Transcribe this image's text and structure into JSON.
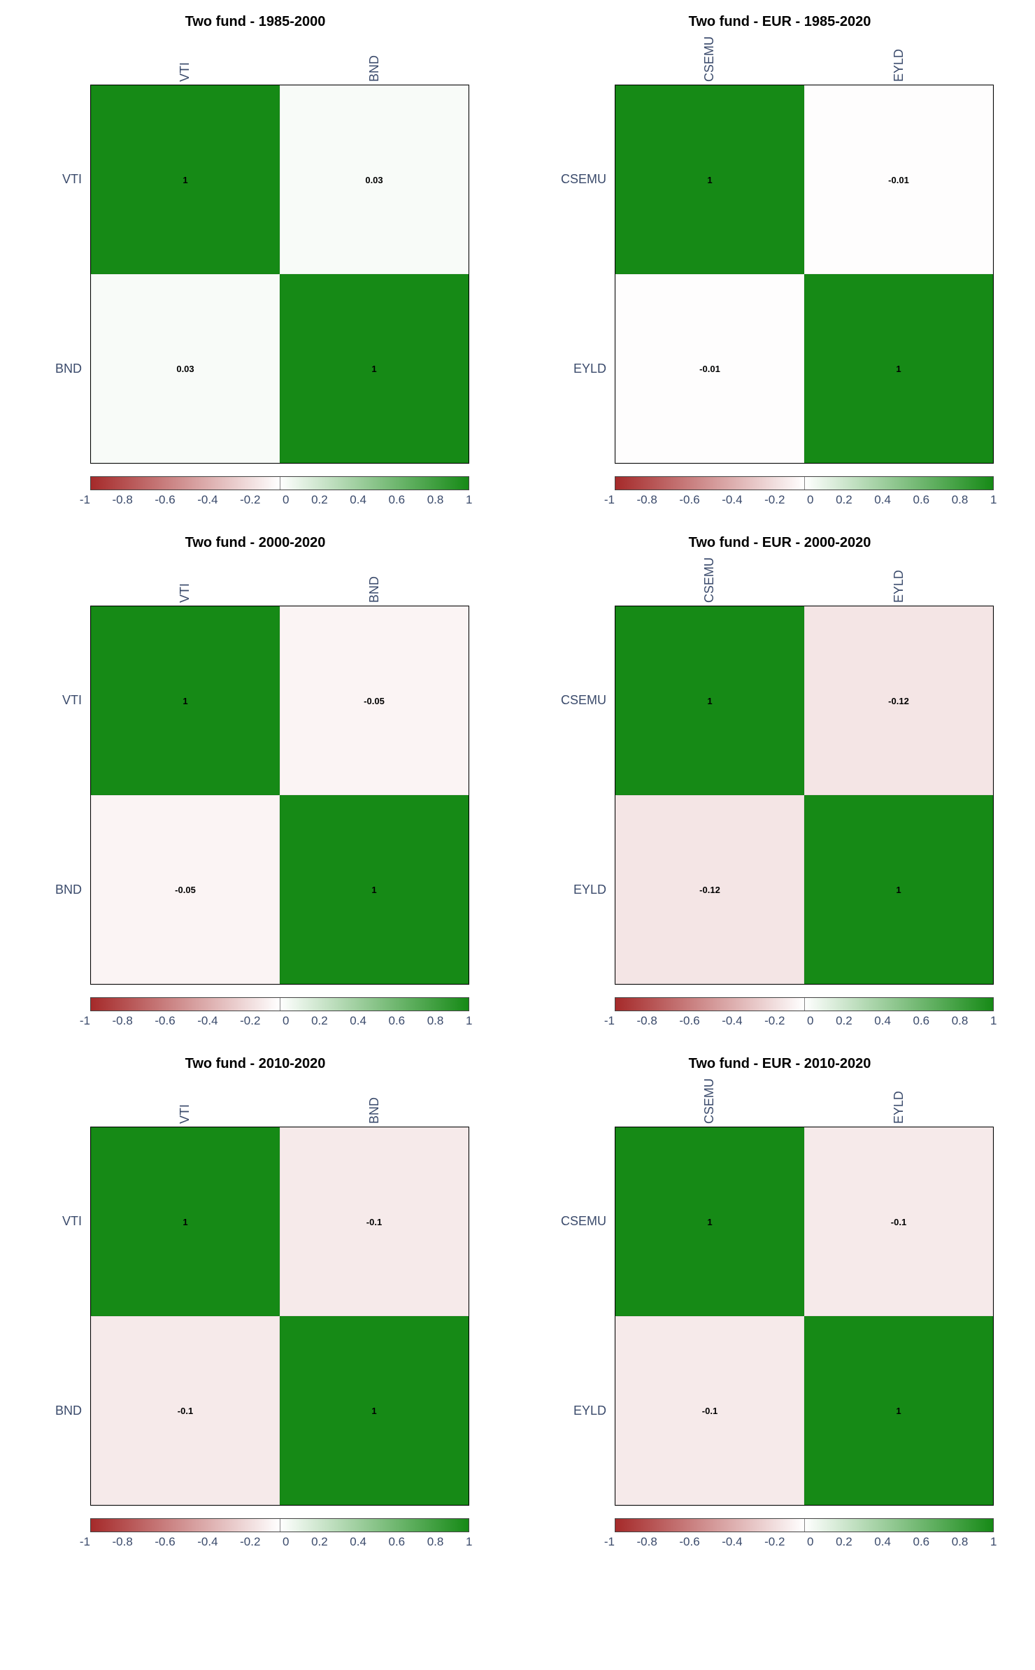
{
  "colorbar": {
    "ticks": [
      "-1",
      "-0.8",
      "-0.6",
      "-0.4",
      "-0.2",
      "0",
      "0.2",
      "0.4",
      "0.6",
      "0.8",
      "1"
    ],
    "min": -1,
    "max": 1,
    "neg_color": "#a52a2a",
    "zero_color": "#ffffff",
    "pos_color": "#168a16"
  },
  "panels": [
    {
      "title": "Two fund - 1985-2000",
      "labels": [
        "VTI",
        "BND"
      ],
      "values": [
        [
          1,
          0.03
        ],
        [
          0.03,
          1
        ]
      ],
      "display": [
        [
          "1",
          "0.03"
        ],
        [
          "0.03",
          "1"
        ]
      ]
    },
    {
      "title": "Two fund - EUR - 1985-2020",
      "labels": [
        "CSEMU",
        "EYLD"
      ],
      "values": [
        [
          1,
          -0.01
        ],
        [
          -0.01,
          1
        ]
      ],
      "display": [
        [
          "1",
          "-0.01"
        ],
        [
          "-0.01",
          "1"
        ]
      ]
    },
    {
      "title": "Two fund - 2000-2020",
      "labels": [
        "VTI",
        "BND"
      ],
      "values": [
        [
          1,
          -0.05
        ],
        [
          -0.05,
          1
        ]
      ],
      "display": [
        [
          "1",
          "-0.05"
        ],
        [
          "-0.05",
          "1"
        ]
      ]
    },
    {
      "title": "Two fund - EUR - 2000-2020",
      "labels": [
        "CSEMU",
        "EYLD"
      ],
      "values": [
        [
          1,
          -0.12
        ],
        [
          -0.12,
          1
        ]
      ],
      "display": [
        [
          "1",
          "-0.12"
        ],
        [
          "-0.12",
          "1"
        ]
      ]
    },
    {
      "title": "Two fund - 2010-2020",
      "labels": [
        "VTI",
        "BND"
      ],
      "values": [
        [
          1,
          -0.1
        ],
        [
          -0.1,
          1
        ]
      ],
      "display": [
        [
          "1",
          "-0.1"
        ],
        [
          "-0.1",
          "1"
        ]
      ]
    },
    {
      "title": "Two fund - EUR - 2010-2020",
      "labels": [
        "CSEMU",
        "EYLD"
      ],
      "values": [
        [
          1,
          -0.1
        ],
        [
          -0.1,
          1
        ]
      ],
      "display": [
        [
          "1",
          "-0.1"
        ],
        [
          "-0.1",
          "1"
        ]
      ]
    }
  ]
}
